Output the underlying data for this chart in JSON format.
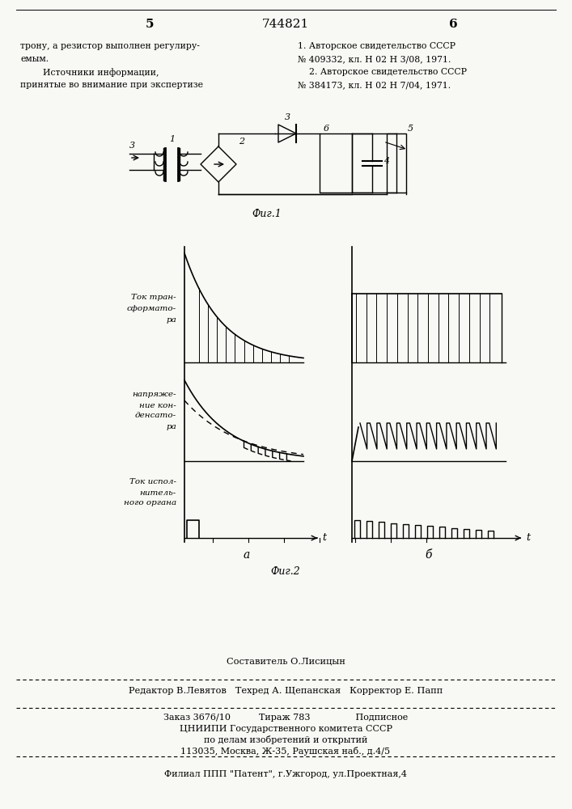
{
  "page_width": 7.07,
  "page_height": 10.0,
  "bg_color": "#f8f8f4",
  "header_left_num": "5",
  "header_center_num": "744821",
  "header_right_num": "6",
  "text_left": [
    "трону, а резистор выполнен регулиру-",
    "емым.",
    "        Источники информации,",
    "принятые во внимание при экспертизе"
  ],
  "text_right": [
    "1. Авторское свидетельство СССР",
    "№ 409332, кл. Н 02 Н 3/08, 1971.",
    "    2. Авторское свидетельство СССР",
    "№ 384173, кл. Н 02 Н 7/04, 1971."
  ],
  "fig1_label": "Фиг.1",
  "fig2_label": "Фиг.2",
  "fig2a_label": "а",
  "fig2b_label": "б",
  "label_tok_trans": [
    "Ток тран-",
    "сформато-",
    "ра"
  ],
  "label_napryaz": [
    "напряже-",
    "ние кон-",
    "денсато-",
    "ра"
  ],
  "label_tok_ispoln": [
    "Ток испол-",
    "нитель-",
    "ного органа"
  ],
  "footer_line1": "Составитель О.Лисицын",
  "footer_line2": "Редактор В.Левятов   Техред А. Щепанская   Корректор Е. Папп",
  "footer_line3": "Заказ 3676/10          Тираж 783                Подписное",
  "footer_line4": "ЦНИИПИ Государственного комитета СССР",
  "footer_line5": "по делам изобретений и открытий",
  "footer_line6": "113035, Москва, Ж-35, Раушская наб., д.4/5",
  "footer_line7": "Филиал ППП \"Патент\", г.Ужгород, ул.Проектная,4"
}
